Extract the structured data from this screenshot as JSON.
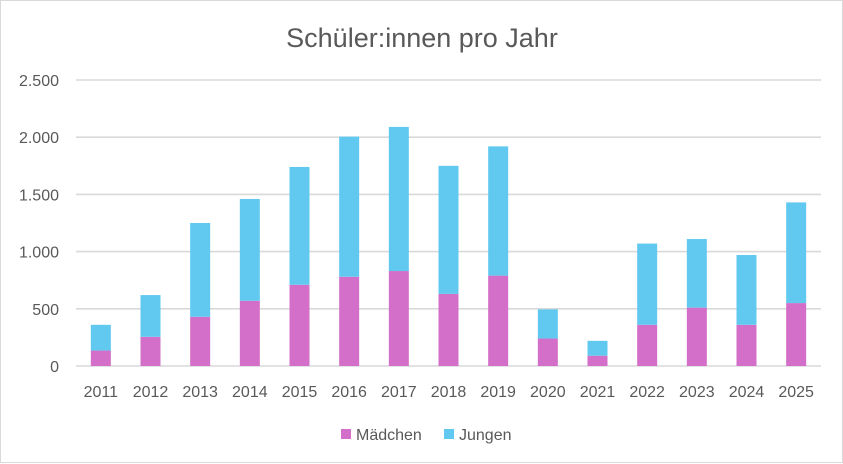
{
  "chart_data": {
    "type": "bar",
    "stacked": true,
    "title": "Schüler:innen pro Jahr",
    "xlabel": "",
    "ylabel": "",
    "categories": [
      "2011",
      "2012",
      "2013",
      "2014",
      "2015",
      "2016",
      "2017",
      "2018",
      "2019",
      "2020",
      "2021",
      "2022",
      "2023",
      "2024",
      "2025"
    ],
    "series": [
      {
        "name": "Mädchen",
        "color": "#D36FC8",
        "values": [
          135,
          255,
          430,
          570,
          710,
          780,
          830,
          630,
          790,
          240,
          90,
          360,
          510,
          360,
          550
        ]
      },
      {
        "name": "Jungen",
        "color": "#61C9F0",
        "values": [
          225,
          365,
          820,
          890,
          1030,
          1225,
          1260,
          1120,
          1130,
          255,
          130,
          710,
          600,
          610,
          880
        ]
      }
    ],
    "ylim": [
      0,
      2500
    ],
    "yticks": [
      0,
      500,
      1000,
      1500,
      2000,
      2500
    ],
    "ytick_labels": [
      "0",
      "500",
      "1.000",
      "1.500",
      "2.000",
      "2.500"
    ],
    "grid": true,
    "legend_position": "bottom"
  }
}
